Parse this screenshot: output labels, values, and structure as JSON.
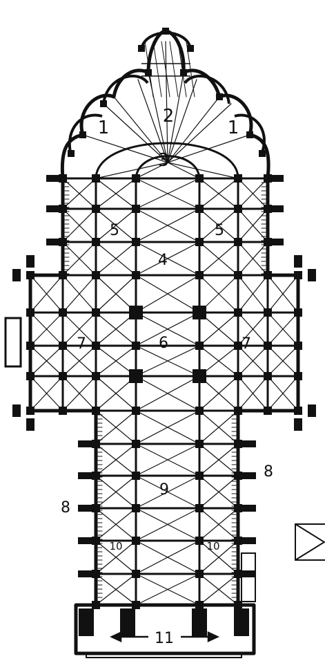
{
  "labels": {
    "chapel_left": "1",
    "chapel_right": "1",
    "ambulatory": "2",
    "apse": "3",
    "choir": "4",
    "choir_aisle_left": "5",
    "choir_aisle_right": "5",
    "crossing": "6",
    "transept_left": "7",
    "transept_right": "7",
    "aisle_label_left": "8",
    "aisle_label_right": "8",
    "nave": "9",
    "nave_aisle_left": "10",
    "nave_aisle_right": "10",
    "narthex": "11"
  },
  "colors": {
    "ink": "#111111",
    "paper": "#ffffff"
  }
}
